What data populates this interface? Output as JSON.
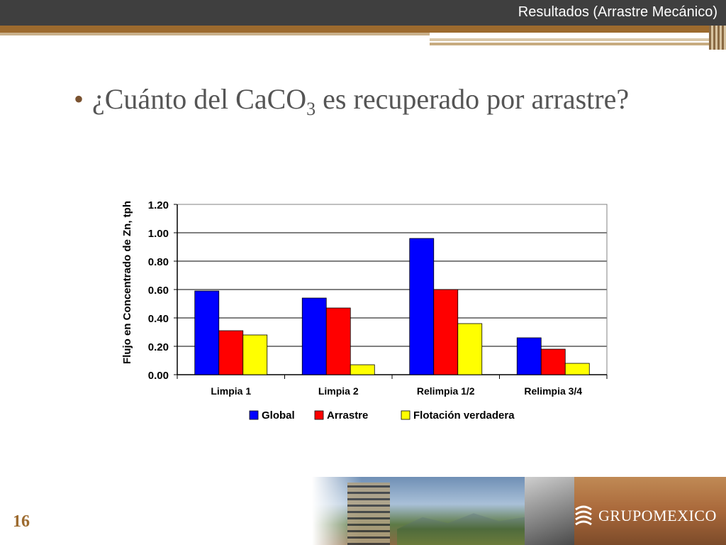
{
  "header": {
    "title": "Resultados (Arrastre Mecánico)"
  },
  "bullet": {
    "text_before": "¿Cuánto del CaCO",
    "subscript": "3",
    "text_after": " es recuperado por arrastre?"
  },
  "footer": {
    "page_number": "16",
    "logo_text": "GRUPOMEXICO"
  },
  "colors": {
    "global": "#0000ff",
    "arrastre": "#ff0000",
    "flotacion": "#ffff00",
    "accent": "#9c6a2e"
  },
  "chart_data": {
    "type": "bar",
    "title": "",
    "xlabel": "",
    "ylabel": "Flujo en Concentrado de Zn, tph",
    "ylim": [
      0,
      1.2
    ],
    "yticks": [
      "0.00",
      "0.20",
      "0.40",
      "0.60",
      "0.80",
      "1.00",
      "1.20"
    ],
    "grid": true,
    "legend_position": "bottom",
    "categories": [
      "Limpia 1",
      "Limpia 2",
      "Relimpia 1/2",
      "Relimpia 3/4"
    ],
    "series": [
      {
        "name": "Global",
        "color": "#0000ff",
        "values": [
          0.59,
          0.54,
          0.96,
          0.26
        ]
      },
      {
        "name": "Arrastre",
        "color": "#ff0000",
        "values": [
          0.31,
          0.47,
          0.6,
          0.18
        ]
      },
      {
        "name": "Flotación verdadera",
        "color": "#ffff00",
        "values": [
          0.28,
          0.07,
          0.36,
          0.08
        ]
      }
    ]
  }
}
